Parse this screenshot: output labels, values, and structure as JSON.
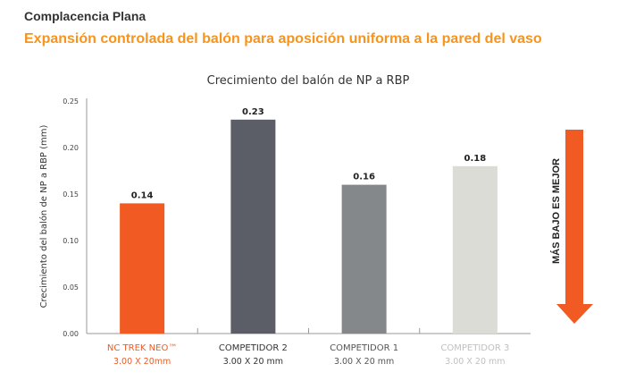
{
  "header": {
    "title": "Complacencia Plana",
    "subtitle": "Expansión controlada del balón para aposición uniforma a la pared del vaso"
  },
  "chart_data": {
    "type": "bar",
    "title": "Crecimiento del balón de NP a RBP",
    "ylabel": "Crecimiento del balón de NP a RBP (mm)",
    "xlabel": "",
    "ylim": [
      0,
      0.25
    ],
    "yticks": [
      "0.00",
      "0.05",
      "0.10",
      "0.15",
      "0.20",
      "0.25"
    ],
    "categories": [
      "NC TREK NEO™",
      "COMPETIDOR 2",
      "COMPETIDOR 1",
      "COMPETIDOR 3"
    ],
    "sublabels": [
      "3.00 X 20mm",
      "3.00 X 20 mm",
      "3.00 X 20 mm",
      "3.00 X 20 mm"
    ],
    "values": [
      0.14,
      0.23,
      0.16,
      0.18
    ],
    "value_labels": [
      "0.14",
      "0.23",
      "0.16",
      "0.18"
    ],
    "colors": [
      "#f15a22",
      "#5b5e66",
      "#85888a",
      "#dcdcd6"
    ],
    "label_colors": [
      "#f15a22",
      "#333333",
      "#555555",
      "#c0c0c0"
    ],
    "annotation": "MÁS BAJO ES MEJOR",
    "accent": "#f15a22",
    "grid": false
  }
}
